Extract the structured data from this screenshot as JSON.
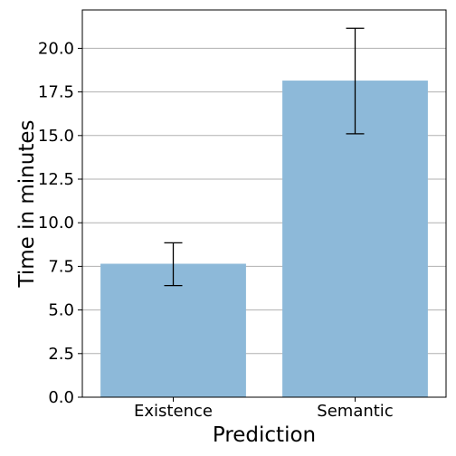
{
  "chart_data": {
    "type": "bar",
    "title": "",
    "xlabel": "Prediction",
    "ylabel": "Time in minutes",
    "categories": [
      "Existence",
      "Semantic"
    ],
    "values": [
      7.65,
      18.15
    ],
    "error_low": [
      6.4,
      15.1
    ],
    "error_high": [
      8.85,
      21.15
    ],
    "ylim": [
      0,
      22.2
    ],
    "yticks": [
      0.0,
      2.5,
      5.0,
      7.5,
      10.0,
      12.5,
      15.0,
      17.5,
      20.0
    ],
    "ytick_labels": [
      "0.0",
      "2.5",
      "5.0",
      "7.5",
      "10.0",
      "12.5",
      "15.0",
      "17.5",
      "20.0"
    ],
    "grid": "y",
    "colors": {
      "bar": "#8db9d9",
      "grid": "#b0b0b0",
      "axis": "#000000",
      "errorbar": "#000000"
    }
  }
}
